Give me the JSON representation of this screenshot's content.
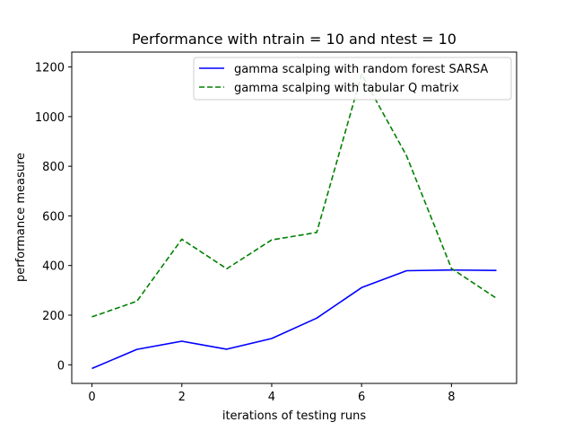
{
  "chart_data": {
    "type": "line",
    "title": "Performance with ntrain = 10 and ntest = 10",
    "xlabel": "iterations of testing runs",
    "ylabel": "performance measure",
    "xlim": [
      -0.45,
      9.45
    ],
    "ylim": [
      -75,
      1260
    ],
    "xticks": [
      0,
      2,
      4,
      6,
      8
    ],
    "yticks": [
      0,
      200,
      400,
      600,
      800,
      1000,
      1200
    ],
    "grid": false,
    "legend_position": "top-right",
    "x": [
      0,
      1,
      2,
      3,
      4,
      5,
      6,
      7,
      8,
      9
    ],
    "series": [
      {
        "name": "gamma scalping with random forest SARSA",
        "color": "#0000ff",
        "style": "solid",
        "values": [
          -15,
          62,
          95,
          63,
          106,
          188,
          311,
          379,
          382,
          380
        ]
      },
      {
        "name": "gamma scalping with tabular Q matrix",
        "color": "#008000",
        "style": "dashed",
        "values": [
          193,
          256,
          506,
          387,
          503,
          533,
          1170,
          842,
          388,
          268
        ]
      }
    ]
  }
}
